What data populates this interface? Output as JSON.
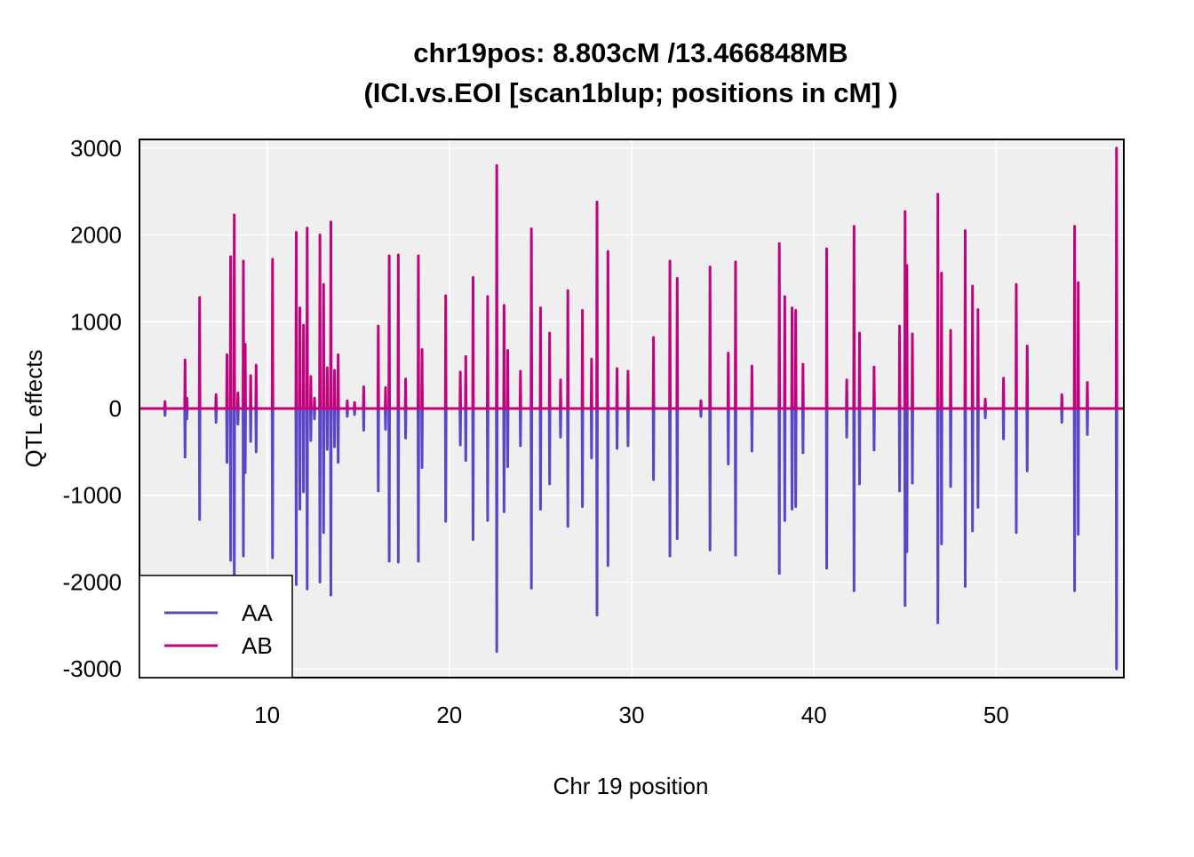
{
  "colors": {
    "AA": "#5a46c6",
    "AB": "#c0047e",
    "panel_background": "#efefef",
    "grid": "#ffffff"
  },
  "chart_data": {
    "type": "line",
    "title_line1": "chr19pos: 8.803cM /13.466848MB",
    "title_line2": "(ICI.vs.EOI [scan1blup; positions in cM] )",
    "xlabel": "Chr 19 position",
    "ylabel": "QTL effects",
    "xlim": [
      3,
      57
    ],
    "ylim": [
      -3100,
      3100
    ],
    "x_ticks": [
      10,
      20,
      30,
      40,
      50
    ],
    "y_ticks": [
      -3000,
      -2000,
      -1000,
      0,
      1000,
      2000,
      3000
    ],
    "grid": true,
    "legend": {
      "position": "bottom-left",
      "entries": [
        "AA",
        "AB"
      ]
    },
    "series": [
      {
        "name": "AA",
        "color_key": "AA"
      },
      {
        "name": "AB",
        "color_key": "AB"
      }
    ],
    "spikes": [
      [
        4.4,
        80
      ],
      [
        5.5,
        560
      ],
      [
        5.6,
        120
      ],
      [
        6.3,
        1280
      ],
      [
        7.2,
        160
      ],
      [
        7.8,
        620
      ],
      [
        8.0,
        1750
      ],
      [
        8.2,
        2230
      ],
      [
        8.4,
        180
      ],
      [
        8.7,
        1700
      ],
      [
        8.8,
        740
      ],
      [
        9.1,
        380
      ],
      [
        9.4,
        500
      ],
      [
        10.3,
        1720
      ],
      [
        11.6,
        2030
      ],
      [
        11.8,
        1160
      ],
      [
        12.0,
        960
      ],
      [
        12.2,
        2080
      ],
      [
        12.4,
        370
      ],
      [
        12.6,
        120
      ],
      [
        12.9,
        2000
      ],
      [
        13.1,
        1430
      ],
      [
        13.3,
        470
      ],
      [
        13.5,
        2150
      ],
      [
        13.7,
        440
      ],
      [
        13.9,
        620
      ],
      [
        14.4,
        90
      ],
      [
        14.8,
        70
      ],
      [
        15.3,
        250
      ],
      [
        16.1,
        950
      ],
      [
        16.5,
        240
      ],
      [
        16.7,
        1760
      ],
      [
        17.2,
        1770
      ],
      [
        17.6,
        340
      ],
      [
        18.3,
        1760
      ],
      [
        18.5,
        680
      ],
      [
        19.8,
        1300
      ],
      [
        20.6,
        420
      ],
      [
        20.9,
        600
      ],
      [
        21.3,
        1510
      ],
      [
        22.1,
        1290
      ],
      [
        22.6,
        2800
      ],
      [
        23.0,
        1190
      ],
      [
        23.2,
        670
      ],
      [
        23.9,
        430
      ],
      [
        24.5,
        2070
      ],
      [
        25.0,
        1160
      ],
      [
        25.5,
        870
      ],
      [
        26.1,
        330
      ],
      [
        26.5,
        1360
      ],
      [
        27.3,
        1130
      ],
      [
        27.8,
        570
      ],
      [
        28.1,
        2380
      ],
      [
        28.7,
        1810
      ],
      [
        29.2,
        460
      ],
      [
        29.8,
        430
      ],
      [
        31.2,
        820
      ],
      [
        32.1,
        1700
      ],
      [
        32.5,
        1500
      ],
      [
        33.8,
        90
      ],
      [
        34.3,
        1630
      ],
      [
        35.3,
        640
      ],
      [
        35.7,
        1690
      ],
      [
        36.6,
        490
      ],
      [
        38.1,
        1900
      ],
      [
        38.4,
        1290
      ],
      [
        38.8,
        1160
      ],
      [
        39.0,
        1130
      ],
      [
        39.4,
        510
      ],
      [
        40.7,
        1840
      ],
      [
        41.8,
        330
      ],
      [
        42.2,
        2100
      ],
      [
        42.5,
        870
      ],
      [
        43.3,
        480
      ],
      [
        44.7,
        950
      ],
      [
        45.0,
        2270
      ],
      [
        45.1,
        1650
      ],
      [
        45.4,
        860
      ],
      [
        46.8,
        2470
      ],
      [
        47.0,
        1560
      ],
      [
        47.5,
        900
      ],
      [
        48.3,
        2050
      ],
      [
        48.7,
        1410
      ],
      [
        49.0,
        1140
      ],
      [
        49.4,
        110
      ],
      [
        50.4,
        350
      ],
      [
        51.1,
        1430
      ],
      [
        51.7,
        720
      ],
      [
        53.6,
        160
      ],
      [
        54.3,
        2100
      ],
      [
        54.5,
        1450
      ],
      [
        55.0,
        300
      ],
      [
        56.6,
        3000
      ]
    ]
  },
  "legend": {
    "aa_label": "AA",
    "ab_label": "AB"
  }
}
